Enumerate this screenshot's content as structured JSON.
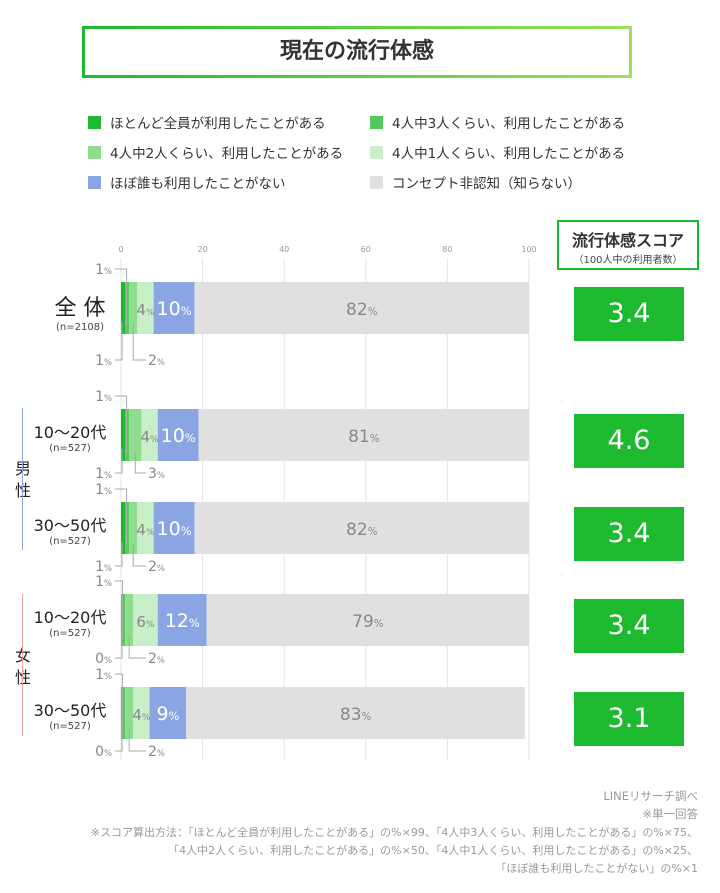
{
  "title": "現在の流行体感",
  "legend": [
    {
      "label": "ほとんど全員が利用したことがある",
      "color": "#1db92e"
    },
    {
      "label": "4人中3人くらい、利用したことがある",
      "color": "#4fcc5c"
    },
    {
      "label": "4人中2人くらい、利用したことがある",
      "color": "#8fdc8f"
    },
    {
      "label": "4人中1人くらい、利用したことがある",
      "color": "#c8efc8"
    },
    {
      "label": "ほぼ誰も利用したことがない",
      "color": "#8aa5e3"
    },
    {
      "label": "コンセプト非認知（知らない）",
      "color": "#e0e0e0"
    }
  ],
  "score_header": {
    "title": "流行体感スコア",
    "subtitle": "（100人中の利用者数）"
  },
  "groups": {
    "male": "男性",
    "female": "女性"
  },
  "chart_data": {
    "type": "bar",
    "orientation": "horizontal",
    "stacked": true,
    "xlim": [
      0,
      100
    ],
    "xticks": [
      "0",
      "20",
      "40",
      "60",
      "80",
      "100"
    ],
    "grid": true,
    "unit": "%",
    "series": [
      "ほとんど全員が利用したことがある",
      "4人中3人くらい、利用したことがある",
      "4人中2人くらい、利用したことがある",
      "4人中1人くらい、利用したことがある",
      "ほぼ誰も利用したことがない",
      "コンセプト非認知（知らない）"
    ],
    "rows": [
      {
        "label": "全 体",
        "n": "(n=2108)",
        "values": [
          1,
          1,
          2,
          4,
          10,
          82
        ],
        "score": "3.4"
      },
      {
        "label": "10〜20代",
        "n": "(n=527)",
        "group": "male",
        "values": [
          1,
          1,
          3,
          4,
          10,
          81
        ],
        "score": "4.6"
      },
      {
        "label": "30〜50代",
        "n": "(n=527)",
        "group": "male",
        "values": [
          1,
          1,
          2,
          4,
          10,
          82
        ],
        "score": "3.4"
      },
      {
        "label": "10〜20代",
        "n": "(n=527)",
        "group": "female",
        "values": [
          0,
          1,
          2,
          6,
          12,
          79
        ],
        "score": "3.4"
      },
      {
        "label": "30〜50代",
        "n": "(n=527)",
        "group": "female",
        "values": [
          0,
          1,
          2,
          4,
          9,
          83
        ],
        "score": "3.1"
      }
    ]
  },
  "notes": [
    "LINEリサーチ調べ",
    "※単一回答",
    "※スコア算出方法：「ほとんど全員が利用したことがある」の%×99、「4人中3人くらい、利用したことがある」の%×75、",
    "「4人中2人くらい、利用したことがある」の%×50、「4人中1人くらい、利用したことがある」の%×25、",
    "「ほぼ誰も利用したことがない」の%×1"
  ]
}
